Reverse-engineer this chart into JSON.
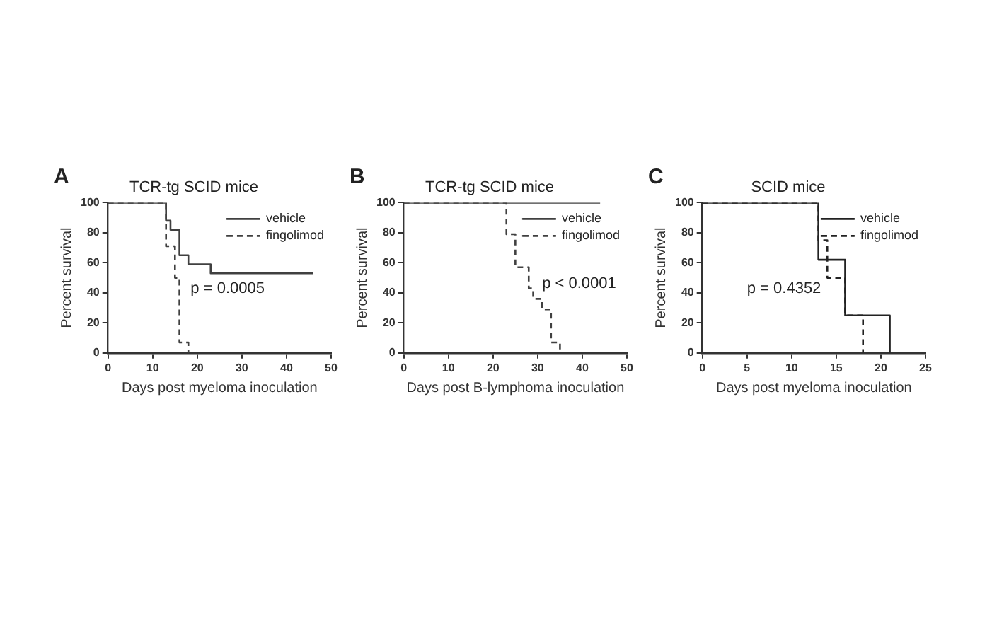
{
  "chart_data": [
    {
      "type": "step",
      "title": "TCR-tg SCID mice",
      "xlabel": "Days post myeloma inoculation",
      "ylabel": "Percent survival",
      "xlim": [
        0,
        50
      ],
      "xticks": [
        0,
        10,
        20,
        30,
        40,
        50
      ],
      "ylim": [
        0,
        100
      ],
      "yticks": [
        0,
        20,
        40,
        60,
        80,
        100
      ],
      "legend": "top right",
      "annotations": [
        "A",
        "p = 0.0005"
      ],
      "series": [
        {
          "name": "vehicle",
          "color": "#404040",
          "line_style": "solid",
          "x": [
            0,
            13,
            14,
            16,
            18,
            23,
            46
          ],
          "values": [
            100,
            88,
            82,
            65,
            59,
            53,
            53
          ]
        },
        {
          "name": "fingolimod",
          "color": "#404040",
          "line_style": "dashed",
          "x": [
            0,
            13,
            15,
            16,
            18
          ],
          "values": [
            100,
            71,
            50,
            7,
            0
          ]
        }
      ]
    },
    {
      "type": "step",
      "title": "TCR-tg SCID mice",
      "xlabel": "Days post B-lymphoma inoculation",
      "ylabel": "Percent survival",
      "xlim": [
        0,
        50
      ],
      "xticks": [
        0,
        10,
        20,
        30,
        40,
        50
      ],
      "ylim": [
        0,
        100
      ],
      "yticks": [
        0,
        20,
        40,
        60,
        80,
        100
      ],
      "legend": "top right",
      "annotations": [
        "B",
        "p < 0.0001"
      ],
      "series": [
        {
          "name": "vehicle",
          "color": "#404040",
          "line_style": "solid",
          "x": [
            0,
            44
          ],
          "values": [
            100,
            100
          ]
        },
        {
          "name": "fingolimod",
          "color": "#404040",
          "line_style": "dashed",
          "x": [
            0,
            23,
            25,
            28,
            29,
            31,
            33,
            35
          ],
          "values": [
            100,
            79,
            57,
            43,
            36,
            29,
            7,
            0
          ]
        }
      ]
    },
    {
      "type": "step",
      "title": "SCID mice",
      "xlabel": "Days post myeloma inoculation",
      "ylabel": "Percent survival",
      "xlim": [
        0,
        25
      ],
      "xticks": [
        0,
        5,
        10,
        15,
        20,
        25
      ],
      "ylim": [
        0,
        100
      ],
      "yticks": [
        0,
        20,
        40,
        60,
        80,
        100
      ],
      "legend": "top right",
      "annotations": [
        "C",
        "p = 0.4352"
      ],
      "series": [
        {
          "name": "vehicle",
          "color": "#222222",
          "line_style": "solid",
          "x": [
            0,
            13,
            16,
            21
          ],
          "values": [
            100,
            62,
            25,
            0
          ]
        },
        {
          "name": "fingolimod",
          "color": "#222222",
          "line_style": "dashed",
          "x": [
            0,
            13,
            14,
            16,
            18
          ],
          "values": [
            100,
            75,
            50,
            25,
            0
          ]
        }
      ]
    }
  ]
}
